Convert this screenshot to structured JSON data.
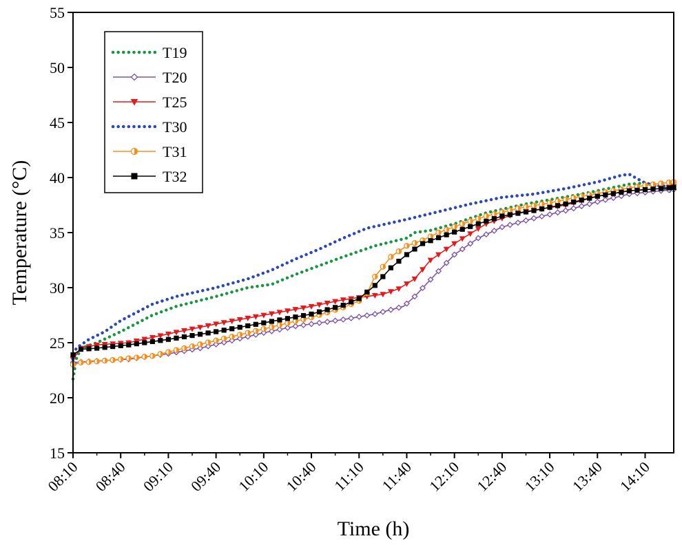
{
  "chart_data": {
    "type": "line",
    "title": "",
    "xlabel": "Time (h)",
    "ylabel": "Temperature (°C)",
    "ylim": [
      15,
      55
    ],
    "xlim_minutes": [
      490,
      868
    ],
    "yticks": [
      15,
      20,
      25,
      30,
      35,
      40,
      45,
      50,
      55
    ],
    "xtick_labels": [
      "08:10",
      "08:40",
      "09:10",
      "09:40",
      "10:10",
      "10:40",
      "11:10",
      "11:40",
      "12:10",
      "12:40",
      "13:10",
      "13:40",
      "14:10"
    ],
    "legend_position": "top-left",
    "series": [
      {
        "name": "T19",
        "color": "#1a9641",
        "style": "dotted",
        "marker": "none",
        "x": [
          490,
          492,
          495,
          505,
          520,
          540,
          555,
          580,
          600,
          615,
          630,
          645,
          660,
          680,
          700,
          705,
          715,
          730,
          750,
          775,
          810,
          840,
          850,
          860,
          868
        ],
        "y": [
          21.7,
          23.5,
          24.5,
          25.0,
          26.0,
          27.5,
          28.3,
          29.2,
          30.0,
          30.3,
          31.2,
          32.0,
          32.8,
          33.8,
          34.5,
          35.0,
          35.2,
          35.8,
          36.8,
          37.6,
          38.5,
          39.4,
          39.5,
          39.1,
          38.6
        ]
      },
      {
        "name": "T20",
        "color": "#7b52ab",
        "style": "solid",
        "marker": "open-diamond",
        "x": [
          490,
          500,
          525,
          550,
          570,
          590,
          610,
          630,
          660,
          680,
          698,
          705,
          720,
          730,
          745,
          760,
          780,
          800,
          820,
          840,
          860,
          868
        ],
        "y": [
          23.2,
          23.3,
          23.5,
          24.0,
          24.5,
          25.2,
          25.9,
          26.5,
          27.1,
          27.6,
          28.3,
          29.2,
          31.5,
          33.0,
          34.5,
          35.5,
          36.3,
          37.0,
          37.8,
          38.5,
          38.8,
          38.9
        ]
      },
      {
        "name": "T25",
        "color": "#e41a1c",
        "style": "solid",
        "marker": "filled-triangle-down",
        "x": [
          490,
          495,
          505,
          525,
          550,
          580,
          610,
          640,
          660,
          675,
          685,
          695,
          705,
          715,
          730,
          750,
          770,
          800,
          820,
          840,
          860,
          868
        ],
        "y": [
          23.5,
          24.5,
          24.8,
          25.0,
          25.8,
          26.7,
          27.5,
          28.3,
          28.9,
          29.2,
          29.4,
          29.9,
          30.8,
          32.5,
          34.0,
          35.8,
          36.8,
          37.5,
          38.3,
          38.8,
          39.0,
          39.2
        ]
      },
      {
        "name": "T30",
        "color": "#2b4ab0",
        "style": "dotted",
        "marker": "none",
        "x": [
          490,
          492,
          500,
          510,
          520,
          540,
          555,
          580,
          600,
          615,
          630,
          645,
          660,
          675,
          700,
          720,
          740,
          760,
          780,
          800,
          820,
          835,
          840,
          850,
          860,
          868
        ],
        "y": [
          23.5,
          24.5,
          25.3,
          26.0,
          27.0,
          28.5,
          29.2,
          30.0,
          30.8,
          31.6,
          32.6,
          33.5,
          34.5,
          35.4,
          36.2,
          36.9,
          37.6,
          38.2,
          38.5,
          39.0,
          39.6,
          40.2,
          40.3,
          39.5,
          39.2,
          39.3
        ]
      },
      {
        "name": "T31",
        "color": "#f5901e",
        "style": "solid",
        "marker": "half-filled-circle",
        "x": [
          490,
          495,
          505,
          520,
          540,
          560,
          580,
          600,
          620,
          640,
          660,
          670,
          675,
          680,
          690,
          700,
          710,
          720,
          735,
          750,
          770,
          790,
          810,
          830,
          850,
          868
        ],
        "y": [
          23.0,
          23.2,
          23.3,
          23.5,
          23.8,
          24.5,
          25.2,
          25.9,
          26.6,
          27.3,
          28.2,
          28.8,
          29.5,
          31.0,
          32.8,
          33.8,
          34.3,
          35.0,
          35.8,
          36.5,
          37.2,
          37.7,
          38.3,
          38.8,
          39.3,
          39.6
        ]
      },
      {
        "name": "T32",
        "color": "#000000",
        "style": "solid",
        "marker": "filled-square",
        "x": [
          490,
          495,
          505,
          525,
          550,
          580,
          610,
          640,
          660,
          670,
          680,
          690,
          700,
          710,
          725,
          745,
          760,
          780,
          800,
          820,
          840,
          860,
          868
        ],
        "y": [
          23.9,
          24.4,
          24.5,
          24.8,
          25.3,
          26.0,
          26.8,
          27.6,
          28.4,
          29.0,
          30.2,
          31.8,
          33.0,
          34.0,
          34.8,
          35.8,
          36.5,
          37.0,
          37.6,
          38.3,
          38.8,
          39.0,
          39.1
        ]
      }
    ]
  }
}
